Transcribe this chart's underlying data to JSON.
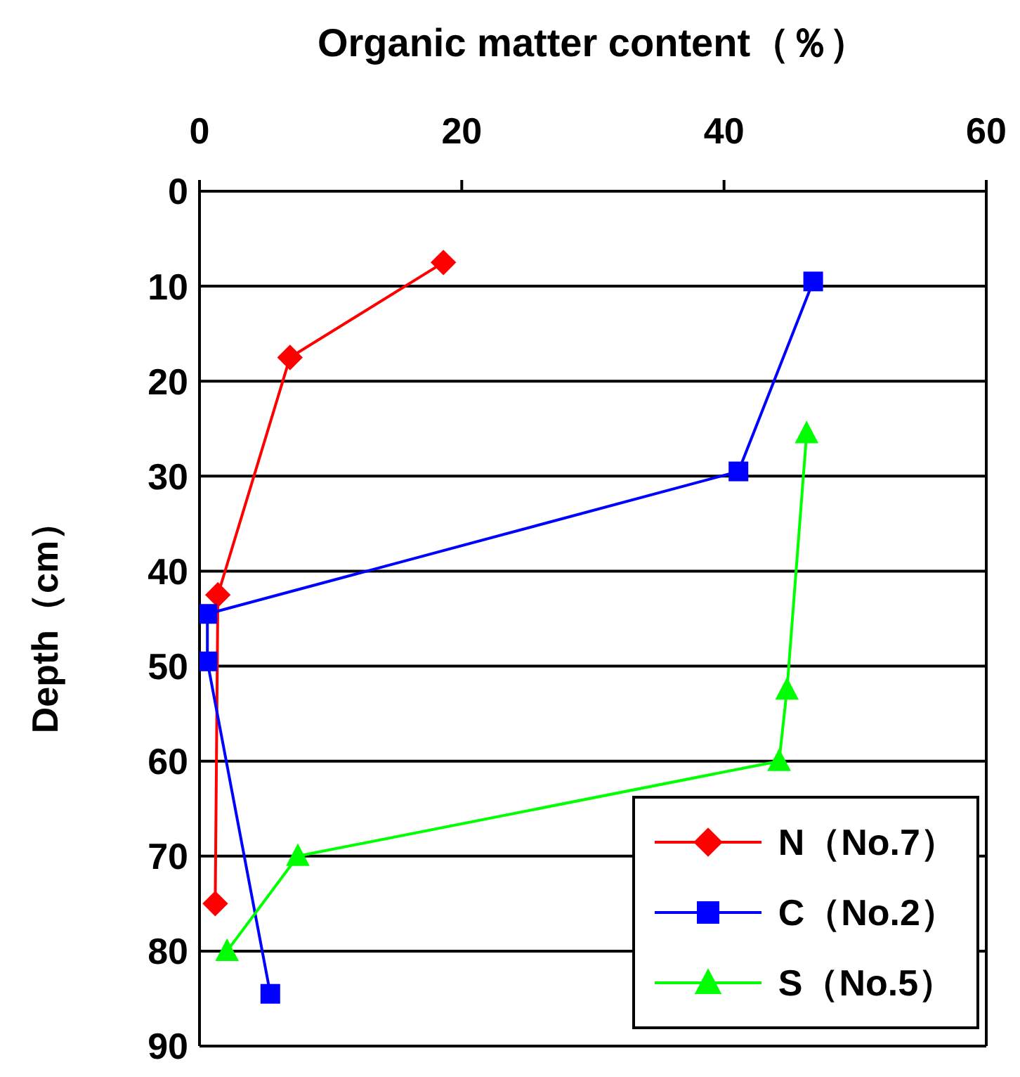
{
  "chart_data": {
    "type": "line",
    "xlabel": "Organic matter content（％）",
    "ylabel": "Depth（cm）",
    "xlim": [
      0,
      60
    ],
    "xticks": [
      0,
      20,
      40,
      60
    ],
    "ylim": [
      90,
      0
    ],
    "yticks": [
      0,
      10,
      20,
      30,
      40,
      50,
      60,
      70,
      80,
      90
    ],
    "grid": "y",
    "legend": "bottom right",
    "series": [
      {
        "name": "N（No.7）",
        "color": "#ff0000",
        "marker": "diamond",
        "x": [
          18.6,
          6.9,
          1.4,
          1.2
        ],
        "values": [
          7.5,
          17.5,
          42.5,
          75
        ]
      },
      {
        "name": "C（No.2）",
        "color": "#0000ff",
        "marker": "square",
        "x": [
          46.8,
          41.1,
          0.6,
          0.6,
          5.4
        ],
        "values": [
          9.5,
          29.5,
          44.5,
          49.5,
          84.5
        ]
      },
      {
        "name": "S（No.5）",
        "color": "#00ff00",
        "marker": "triangle",
        "x": [
          46.3,
          44.8,
          44.2,
          7.5,
          2.1
        ],
        "values": [
          25.5,
          52.5,
          60,
          70,
          80
        ]
      }
    ]
  }
}
